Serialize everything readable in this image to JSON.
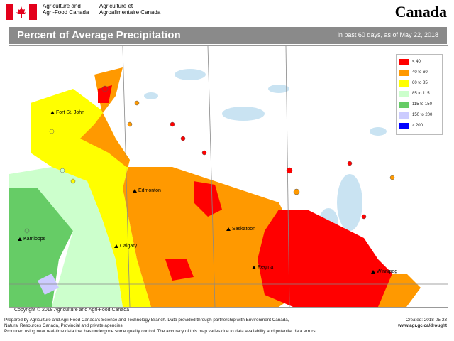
{
  "header": {
    "org_en_line1": "Agriculture and",
    "org_en_line2": "Agri-Food Canada",
    "org_fr_line1": "Agriculture et",
    "org_fr_line2": "Agroalimentaire Canada",
    "wordmark": "Canada"
  },
  "title_band": {
    "title": "Percent of Average Precipitation",
    "subtitle": "in past 60 days, as of May 22, 2018"
  },
  "legend": [
    {
      "label": "< 40",
      "color": "#ff0000"
    },
    {
      "label": "40 to 60",
      "color": "#ff9900"
    },
    {
      "label": "60 to 85",
      "color": "#ffff00"
    },
    {
      "label": "85 to 115",
      "color": "#ccffcc"
    },
    {
      "label": "115 to 150",
      "color": "#66cc66"
    },
    {
      "label": "150 to 200",
      "color": "#ccccff"
    },
    {
      "label": "≥ 200",
      "color": "#0000ff"
    }
  ],
  "cities": [
    {
      "name": "Fort St. John"
    },
    {
      "name": "Edmonton"
    },
    {
      "name": "Saskatoon"
    },
    {
      "name": "Kamloops"
    },
    {
      "name": "Calgary"
    },
    {
      "name": "Regina"
    },
    {
      "name": "Winnipeg"
    }
  ],
  "footer": {
    "copyright": "Copyright © 2018 Agriculture and Agri-Food Canada",
    "line1": "Prepared by Agriculture and Agri-Food Canada's Science and Technology Branch. Data provided through partnership with Environment Canada,",
    "line2": "Natural Resources Canada, Provincial and private agencies.",
    "line3": "Produced using near real-time data that has undergone some quality control. The accuracy of this map varies due to data availability and potential data errors.",
    "created": "Created: 2018-05-23",
    "url": "www.agr.gc.ca/drought"
  }
}
